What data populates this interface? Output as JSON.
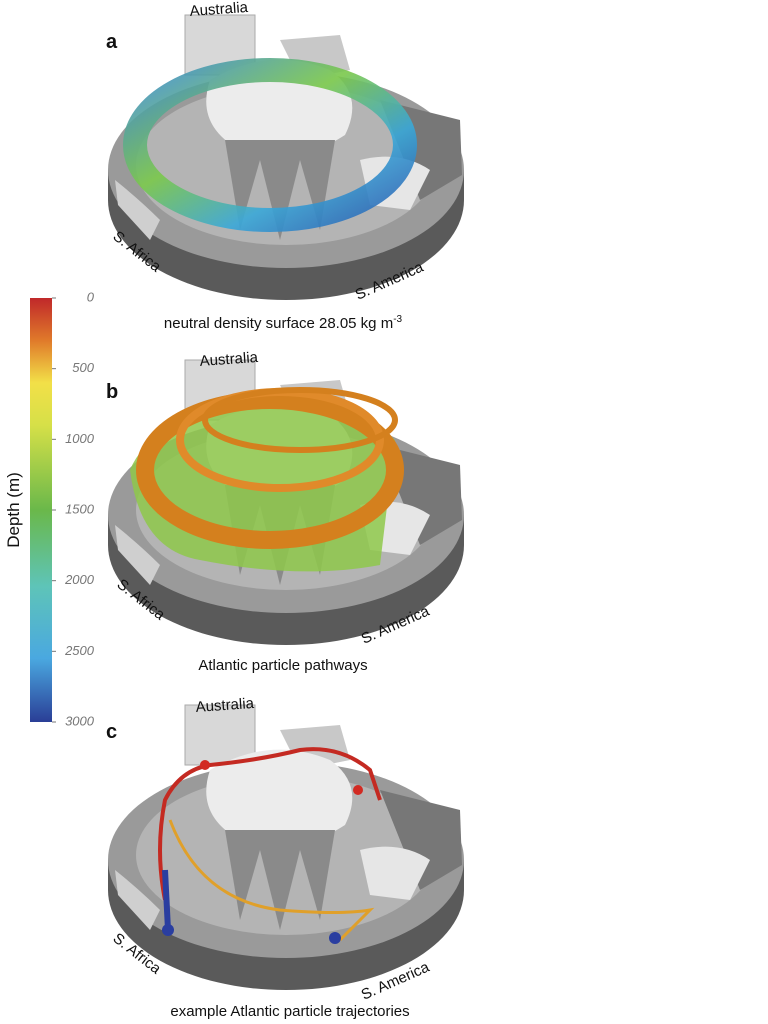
{
  "panels": [
    {
      "letter": "a",
      "labels": [
        "Australia",
        "S. Africa",
        "S. America"
      ],
      "caption": "neutral density surface 28.05 kg m",
      "caption_superscript": "-3"
    },
    {
      "letter": "b",
      "labels": [
        "Australia",
        "S. Africa",
        "S. America"
      ],
      "caption": "Atlantic particle pathways"
    },
    {
      "letter": "c",
      "labels": [
        "Australia",
        "S. Africa",
        "S. America"
      ],
      "caption": "example Atlantic particle trajectories"
    }
  ],
  "colorbar": {
    "label": "Depth (m)",
    "range": [
      0,
      3000
    ],
    "ticks": [
      0,
      500,
      1000,
      1500,
      2000,
      2500,
      3000
    ]
  }
}
